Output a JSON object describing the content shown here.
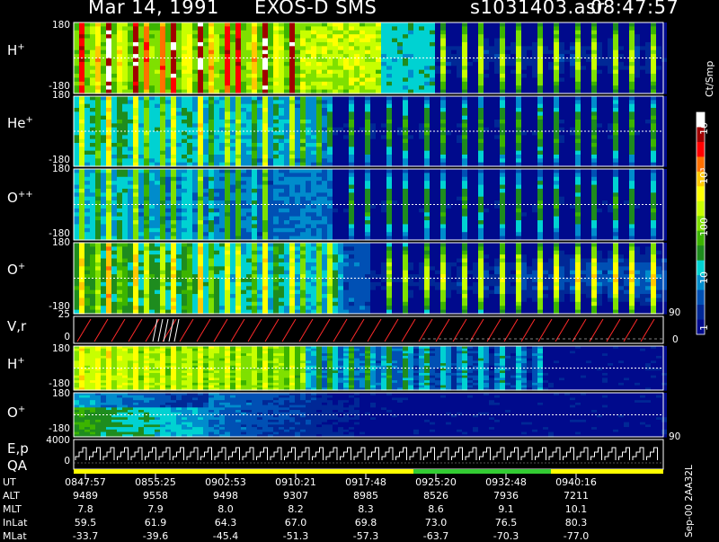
{
  "header": {
    "date": "Mar 14, 1991",
    "title": "EXOS-D SMS",
    "file": "s1031403.asr",
    "time": "08:47:57"
  },
  "chart_data": [
    {
      "type": "heatmap",
      "panels": [
        {
          "label": "H",
          "superscript": "+",
          "ylim": [
            -180,
            180
          ],
          "ytick_top": "180",
          "ytick_bottom": "-180"
        },
        {
          "label": "He",
          "superscript": "+",
          "ylim": [
            -180,
            180
          ],
          "ytick_top": "180",
          "ytick_bottom": "-180"
        },
        {
          "label": "O",
          "superscript": "++",
          "ylim": [
            -180,
            180
          ],
          "ytick_top": "180",
          "ytick_bottom": "-180"
        },
        {
          "label": "O",
          "superscript": "+",
          "ylim": [
            -180,
            180
          ],
          "ytick_top": "180",
          "ytick_bottom": "-180"
        }
      ]
    },
    {
      "type": "line",
      "label": "V,r",
      "ylim": [
        0,
        25
      ],
      "ytick_top": "25",
      "ytick_bottom": "0",
      "right_ticks": [
        "90",
        "0"
      ]
    },
    {
      "type": "heatmap",
      "panels": [
        {
          "label": "H",
          "superscript": "+",
          "ylim": [
            -180,
            180
          ],
          "ytick_top": "180",
          "ytick_bottom": "-180"
        },
        {
          "label": "O",
          "superscript": "+",
          "ylim": [
            -180,
            180
          ],
          "ytick_top": "180",
          "ytick_bottom": "-180"
        }
      ],
      "right_ticks": [
        "90"
      ]
    },
    {
      "type": "line",
      "labels": [
        "E,p",
        "QA"
      ],
      "ylim": [
        0,
        4000
      ],
      "ytick_top": "4000",
      "ytick_bottom": "0"
    }
  ],
  "colorbar": {
    "label": "Ct/Smp",
    "ticks": [
      "10⁴",
      "10³",
      "100",
      "10",
      "1"
    ],
    "colors": [
      "#ffffff",
      "#a00000",
      "#ff0000",
      "#ff7000",
      "#ffc800",
      "#ffff00",
      "#c8ff00",
      "#7fe000",
      "#3cb400",
      "#1e8c1e",
      "#00d2d2",
      "#008ccc",
      "#0050b4",
      "#002896",
      "#000a8c"
    ]
  },
  "footer": {
    "rows": [
      {
        "label": "UT",
        "values": [
          "0847:57",
          "0855:25",
          "0902:53",
          "0910:21",
          "0917:48",
          "0925:20",
          "0932:48",
          "0940:16"
        ]
      },
      {
        "label": "ALT",
        "values": [
          "9489",
          "9558",
          "9498",
          "9307",
          "8985",
          "8526",
          "7936",
          "7211"
        ]
      },
      {
        "label": "MLT",
        "values": [
          "7.8",
          "7.9",
          "8.0",
          "8.2",
          "8.3",
          "8.6",
          "9.1",
          "10.1"
        ]
      },
      {
        "label": "InLat",
        "values": [
          "59.5",
          "61.9",
          "64.3",
          "67.0",
          "69.8",
          "73.0",
          "76.5",
          "80.3"
        ]
      },
      {
        "label": "MLat",
        "values": [
          "-33.7",
          "-39.6",
          "-45.4",
          "-51.3",
          "-57.3",
          "-63.7",
          "-70.3",
          "-77.0"
        ]
      }
    ],
    "stamp": "Sep-00 2AA32L"
  }
}
